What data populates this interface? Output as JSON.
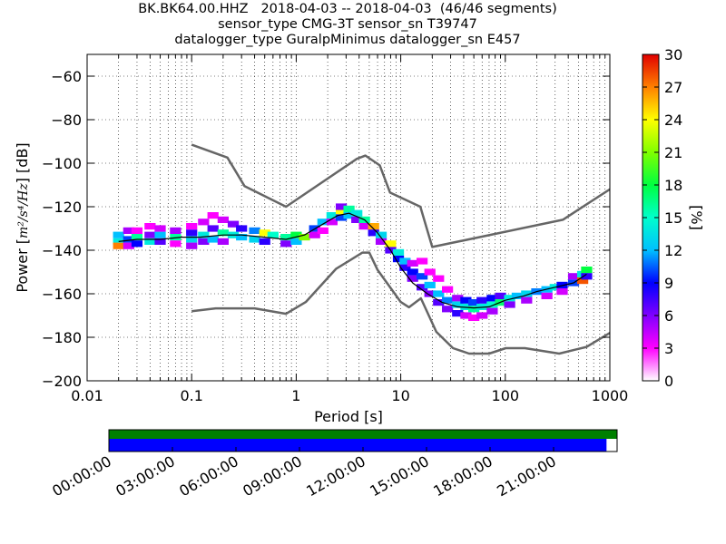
{
  "title_lines": [
    "BK.BK64.00.HHZ   2018-04-03 -- 2018-04-03  (46/46 segments)",
    "sensor_type CMG-3T sensor_sn T39747",
    "datalogger_type GuralpMinimus datalogger_sn E457"
  ],
  "chart_data": [
    {
      "type": "heatmap",
      "title": "BK.BK64.00.HHZ   2018-04-03 -- 2018-04-03  (46/46 segments)",
      "xlabel": "Period [s]",
      "ylabel": "Power [m²/s⁴/Hz] [dB]",
      "ylabel_parts": {
        "prefix": "Power [",
        "unit": "m²/s⁴/Hz",
        "suffix": "] [dB]"
      },
      "x_scale": "log",
      "xlim": [
        0.01,
        1000
      ],
      "ylim": [
        -200,
        -50
      ],
      "x_ticks": [
        0.01,
        0.1,
        1,
        10,
        100,
        1000
      ],
      "x_tick_labels": [
        "0.01",
        "0.1",
        "1",
        "10",
        "100",
        "1000"
      ],
      "y_ticks": [
        -200,
        -180,
        -160,
        -140,
        -120,
        -100,
        -80,
        -60
      ],
      "y_tick_labels": [
        "−200",
        "−180",
        "−160",
        "−140",
        "−120",
        "−100",
        "−80",
        "−60"
      ],
      "grid": true,
      "colorbar": {
        "label": "[%]",
        "range": [
          0,
          30
        ],
        "ticks": [
          0,
          3,
          6,
          9,
          12,
          15,
          18,
          21,
          24,
          27,
          30
        ],
        "tick_labels": [
          "0",
          "3",
          "6",
          "9",
          "12",
          "15",
          "18",
          "21",
          "24",
          "27",
          "30"
        ]
      },
      "mean_curve": {
        "x": [
          0.02,
          0.03,
          0.05,
          0.08,
          0.12,
          0.2,
          0.3,
          0.5,
          0.8,
          1.2,
          1.8,
          2.5,
          3.2,
          4.5,
          6,
          8,
          10,
          13,
          18,
          25,
          35,
          50,
          70,
          100,
          150,
          200,
          300,
          450,
          600
        ],
        "y": [
          -136,
          -135,
          -135,
          -134,
          -134,
          -133,
          -133,
          -134,
          -135,
          -133,
          -128,
          -124,
          -123,
          -126,
          -132,
          -140,
          -148,
          -155,
          -160,
          -164,
          -166,
          -166.5,
          -166,
          -163,
          -161,
          -159,
          -157,
          -155,
          -151
        ]
      },
      "noise_model_high": {
        "x": [
          0.1,
          0.22,
          0.32,
          0.8,
          3.8,
          4.6,
          6.3,
          7.9,
          15.4,
          20,
          354.8,
          1000
        ],
        "y": [
          -91.5,
          -97.4,
          -110.5,
          -120,
          -98,
          -96.5,
          -101,
          -113.5,
          -120,
          -138.5,
          -126,
          -112
        ]
      },
      "noise_model_low": {
        "x": [
          0.1,
          0.17,
          0.4,
          0.8,
          1.24,
          2.4,
          4.3,
          5,
          6,
          10,
          12,
          15.6,
          21.9,
          31.6,
          45,
          70,
          101,
          154,
          328,
          600,
          1000
        ],
        "y": [
          -168,
          -166.7,
          -166.7,
          -169.2,
          -163.7,
          -148.6,
          -141.1,
          -141.1,
          -149,
          -163.8,
          -166.2,
          -162.1,
          -177.5,
          -185,
          -187.5,
          -187.5,
          -185,
          -185,
          -187.5,
          -184.4,
          -178
        ]
      },
      "density_cells": [
        {
          "period": 0.02,
          "db": -136,
          "pct": 14
        },
        {
          "period": 0.02,
          "db": -133,
          "pct": 12
        },
        {
          "period": 0.02,
          "db": -138,
          "pct": 27
        },
        {
          "period": 0.025,
          "db": -135,
          "pct": 10
        },
        {
          "period": 0.025,
          "db": -131,
          "pct": 5
        },
        {
          "period": 0.025,
          "db": -138,
          "pct": 4
        },
        {
          "period": 0.03,
          "db": -134,
          "pct": 16
        },
        {
          "period": 0.03,
          "db": -137,
          "pct": 9
        },
        {
          "period": 0.03,
          "db": -131,
          "pct": 3
        },
        {
          "period": 0.04,
          "db": -133,
          "pct": 6
        },
        {
          "period": 0.04,
          "db": -129,
          "pct": 3
        },
        {
          "period": 0.04,
          "db": -136,
          "pct": 14
        },
        {
          "period": 0.05,
          "db": -133,
          "pct": 12
        },
        {
          "period": 0.05,
          "db": -130,
          "pct": 4
        },
        {
          "period": 0.05,
          "db": -136,
          "pct": 7
        },
        {
          "period": 0.07,
          "db": -131,
          "pct": 5
        },
        {
          "period": 0.07,
          "db": -134,
          "pct": 16
        },
        {
          "period": 0.07,
          "db": -137,
          "pct": 3
        },
        {
          "period": 0.1,
          "db": -132,
          "pct": 8
        },
        {
          "period": 0.1,
          "db": -135,
          "pct": 13
        },
        {
          "period": 0.1,
          "db": -129,
          "pct": 3
        },
        {
          "period": 0.1,
          "db": -138,
          "pct": 5
        },
        {
          "period": 0.13,
          "db": -127,
          "pct": 4
        },
        {
          "period": 0.13,
          "db": -133,
          "pct": 14
        },
        {
          "period": 0.13,
          "db": -136,
          "pct": 6
        },
        {
          "period": 0.16,
          "db": -124,
          "pct": 3
        },
        {
          "period": 0.16,
          "db": -130,
          "pct": 7
        },
        {
          "period": 0.16,
          "db": -135,
          "pct": 12
        },
        {
          "period": 0.2,
          "db": -126,
          "pct": 4
        },
        {
          "period": 0.2,
          "db": -132,
          "pct": 16
        },
        {
          "period": 0.2,
          "db": -136,
          "pct": 5
        },
        {
          "period": 0.25,
          "db": -128,
          "pct": 6
        },
        {
          "period": 0.25,
          "db": -133,
          "pct": 14
        },
        {
          "period": 0.3,
          "db": -130,
          "pct": 8
        },
        {
          "period": 0.3,
          "db": -134,
          "pct": 12
        },
        {
          "period": 0.4,
          "db": -131,
          "pct": 11
        },
        {
          "period": 0.4,
          "db": -135,
          "pct": 13
        },
        {
          "period": 0.5,
          "db": -132,
          "pct": 24
        },
        {
          "period": 0.5,
          "db": -136,
          "pct": 8
        },
        {
          "period": 0.6,
          "db": -133,
          "pct": 15
        },
        {
          "period": 0.8,
          "db": -134,
          "pct": 16
        },
        {
          "period": 0.8,
          "db": -137,
          "pct": 6
        },
        {
          "period": 1,
          "db": -136,
          "pct": 12
        },
        {
          "period": 1,
          "db": -133,
          "pct": 18
        },
        {
          "period": 1.2,
          "db": -134,
          "pct": 21
        },
        {
          "period": 1.5,
          "db": -130,
          "pct": 10
        },
        {
          "period": 1.5,
          "db": -133,
          "pct": 4
        },
        {
          "period": 1.8,
          "db": -127,
          "pct": 12
        },
        {
          "period": 1.8,
          "db": -131,
          "pct": 3
        },
        {
          "period": 2.2,
          "db": -124,
          "pct": 14
        },
        {
          "period": 2.2,
          "db": -127,
          "pct": 4
        },
        {
          "period": 2.7,
          "db": -122,
          "pct": 24
        },
        {
          "period": 2.7,
          "db": -125,
          "pct": 10
        },
        {
          "period": 2.7,
          "db": -120,
          "pct": 6
        },
        {
          "period": 3.2,
          "db": -121,
          "pct": 16
        },
        {
          "period": 3.2,
          "db": -124,
          "pct": 12
        },
        {
          "period": 3.8,
          "db": -123,
          "pct": 14
        },
        {
          "period": 3.8,
          "db": -126,
          "pct": 6
        },
        {
          "period": 4.5,
          "db": -126,
          "pct": 16
        },
        {
          "period": 4.5,
          "db": -129,
          "pct": 4
        },
        {
          "period": 5.5,
          "db": -129,
          "pct": 26
        },
        {
          "period": 5.5,
          "db": -132,
          "pct": 8
        },
        {
          "period": 6.5,
          "db": -133,
          "pct": 13
        },
        {
          "period": 6.5,
          "db": -136,
          "pct": 5
        },
        {
          "period": 8,
          "db": -137,
          "pct": 24
        },
        {
          "period": 8,
          "db": -140,
          "pct": 7
        },
        {
          "period": 9.5,
          "db": -141,
          "pct": 14
        },
        {
          "period": 9.5,
          "db": -144,
          "pct": 9
        },
        {
          "period": 11,
          "db": -145,
          "pct": 12
        },
        {
          "period": 11,
          "db": -148,
          "pct": 8
        },
        {
          "period": 13,
          "db": -150,
          "pct": 9
        },
        {
          "period": 13,
          "db": -146,
          "pct": 4
        },
        {
          "period": 13,
          "db": -153,
          "pct": 6
        },
        {
          "period": 16,
          "db": -152,
          "pct": 10
        },
        {
          "period": 16,
          "db": -157,
          "pct": 7
        },
        {
          "period": 16,
          "db": -145,
          "pct": 3
        },
        {
          "period": 19,
          "db": -156,
          "pct": 12
        },
        {
          "period": 19,
          "db": -160,
          "pct": 6
        },
        {
          "period": 19,
          "db": -150,
          "pct": 3
        },
        {
          "period": 23,
          "db": -160,
          "pct": 12
        },
        {
          "period": 23,
          "db": -164,
          "pct": 7
        },
        {
          "period": 23,
          "db": -153,
          "pct": 3
        },
        {
          "period": 28,
          "db": -163,
          "pct": 11
        },
        {
          "period": 28,
          "db": -167,
          "pct": 6
        },
        {
          "period": 28,
          "db": -158,
          "pct": 3
        },
        {
          "period": 35,
          "db": -165,
          "pct": 13
        },
        {
          "period": 35,
          "db": -169,
          "pct": 8
        },
        {
          "period": 35,
          "db": -162,
          "pct": 5
        },
        {
          "period": 42,
          "db": -166,
          "pct": 14
        },
        {
          "period": 42,
          "db": -170,
          "pct": 4
        },
        {
          "period": 42,
          "db": -163,
          "pct": 9
        },
        {
          "period": 50,
          "db": -167,
          "pct": 16
        },
        {
          "period": 50,
          "db": -171,
          "pct": 3
        },
        {
          "period": 50,
          "db": -164,
          "pct": 10
        },
        {
          "period": 60,
          "db": -166,
          "pct": 14
        },
        {
          "period": 60,
          "db": -163,
          "pct": 8
        },
        {
          "period": 60,
          "db": -170,
          "pct": 4
        },
        {
          "period": 75,
          "db": -165,
          "pct": 15
        },
        {
          "period": 75,
          "db": -162,
          "pct": 9
        },
        {
          "period": 75,
          "db": -168,
          "pct": 5
        },
        {
          "period": 90,
          "db": -164,
          "pct": 17
        },
        {
          "period": 90,
          "db": -161,
          "pct": 7
        },
        {
          "period": 110,
          "db": -162,
          "pct": 14
        },
        {
          "period": 110,
          "db": -165,
          "pct": 6
        },
        {
          "period": 130,
          "db": -161,
          "pct": 12
        },
        {
          "period": 160,
          "db": -160,
          "pct": 13
        },
        {
          "period": 160,
          "db": -163,
          "pct": 5
        },
        {
          "period": 200,
          "db": -159,
          "pct": 11
        },
        {
          "period": 250,
          "db": -158,
          "pct": 12
        },
        {
          "period": 250,
          "db": -161,
          "pct": 4
        },
        {
          "period": 300,
          "db": -157,
          "pct": 14
        },
        {
          "period": 350,
          "db": -156,
          "pct": 9
        },
        {
          "period": 350,
          "db": -159,
          "pct": 4
        },
        {
          "period": 450,
          "db": -155,
          "pct": 10
        },
        {
          "period": 450,
          "db": -152,
          "pct": 5
        },
        {
          "period": 550,
          "db": -151,
          "pct": 14
        },
        {
          "period": 550,
          "db": -154,
          "pct": 28
        },
        {
          "period": 600,
          "db": -149,
          "pct": 18
        },
        {
          "period": 600,
          "db": -152,
          "pct": 8
        }
      ]
    },
    {
      "type": "bar",
      "description_of_series": "segment data availability",
      "x_tick_labels": [
        "00:00:00",
        "03:00:00",
        "06:00:00",
        "09:00:00",
        "12:00:00",
        "15:00:00",
        "18:00:00",
        "21:00:00"
      ],
      "x_ticks_hours": [
        0,
        3,
        6,
        9,
        12,
        15,
        18,
        21
      ],
      "xlim_hours": [
        0,
        24
      ],
      "series": [
        {
          "color": "#008000",
          "coverage_hours": [
            0,
            24
          ]
        },
        {
          "color": "#0000ff",
          "coverage_hours": [
            0,
            23.5
          ]
        }
      ]
    }
  ]
}
